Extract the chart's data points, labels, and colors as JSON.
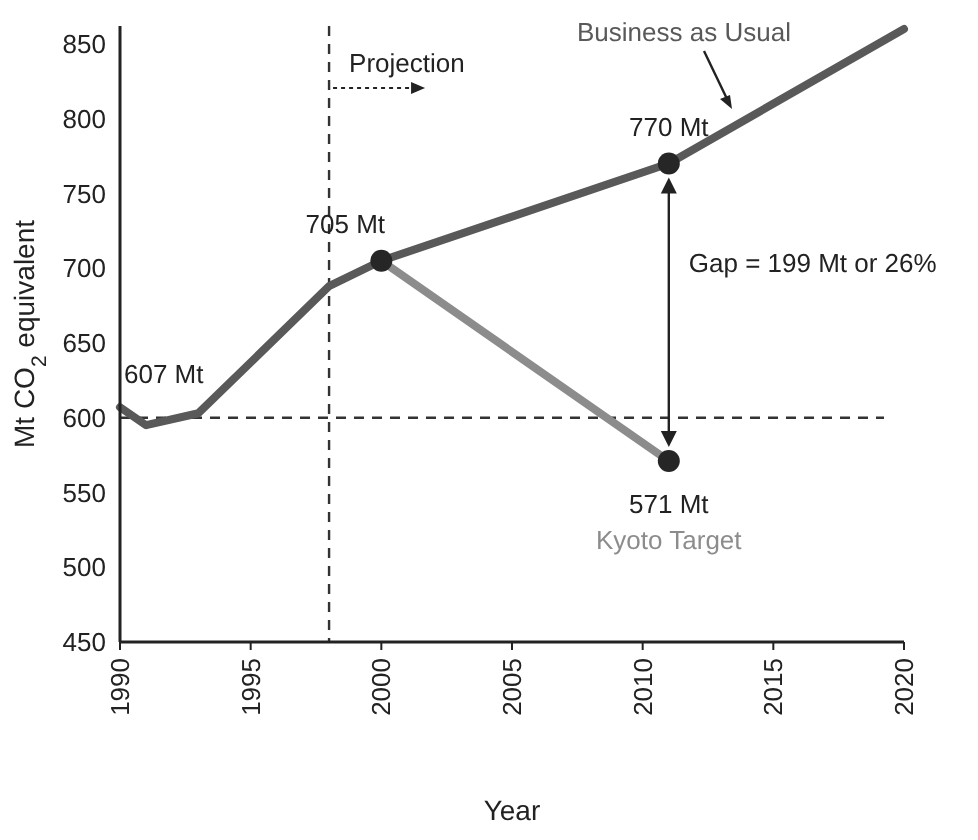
{
  "chart_data": {
    "type": "line",
    "xlabel": "Year",
    "ylabel": "Mt CO$_{2}$ equivalent",
    "xlim": [
      1990,
      2020
    ],
    "xticks": [
      1990,
      1995,
      2000,
      2005,
      2010,
      2015,
      2020
    ],
    "ylim": [
      450,
      862
    ],
    "yticks": [
      450,
      500,
      550,
      600,
      650,
      700,
      750,
      800,
      850
    ],
    "grid": false,
    "line_style": "solid",
    "marker": "none",
    "series": [
      {
        "name": "Business as Usual",
        "color": "#595959",
        "x": [
          1990,
          1991,
          1993,
          1998,
          2000,
          2011,
          2020
        ],
        "values": [
          607,
          595,
          603,
          688,
          705,
          770,
          860
        ]
      },
      {
        "name": "Kyoto Target",
        "color": "#8c8c8c",
        "x": [
          2000,
          2011
        ],
        "values": [
          705,
          571
        ]
      },
      {
        "type": "scatter",
        "marker": "circle",
        "color": "#262626",
        "x": [
          2000,
          2011,
          2011
        ],
        "values": [
          705,
          770,
          571
        ]
      }
    ],
    "ref_lines": [
      {
        "axis": "x",
        "value": 1998,
        "label": "Projection",
        "line_style": "dashed",
        "color": "#333333"
      },
      {
        "axis": "y",
        "value": 600,
        "line_style": "dashed",
        "color": "#333333"
      }
    ],
    "annotations": [
      {
        "text": "607 Mt",
        "x": 1990,
        "y": 607
      },
      {
        "text": "705 Mt",
        "x": 2000,
        "y": 705
      },
      {
        "text": "770 Mt",
        "x": 2011,
        "y": 770
      },
      {
        "text": "571 Mt",
        "x": 2011,
        "y": 571
      },
      "Gap = 199 Mt or 26%"
    ]
  }
}
